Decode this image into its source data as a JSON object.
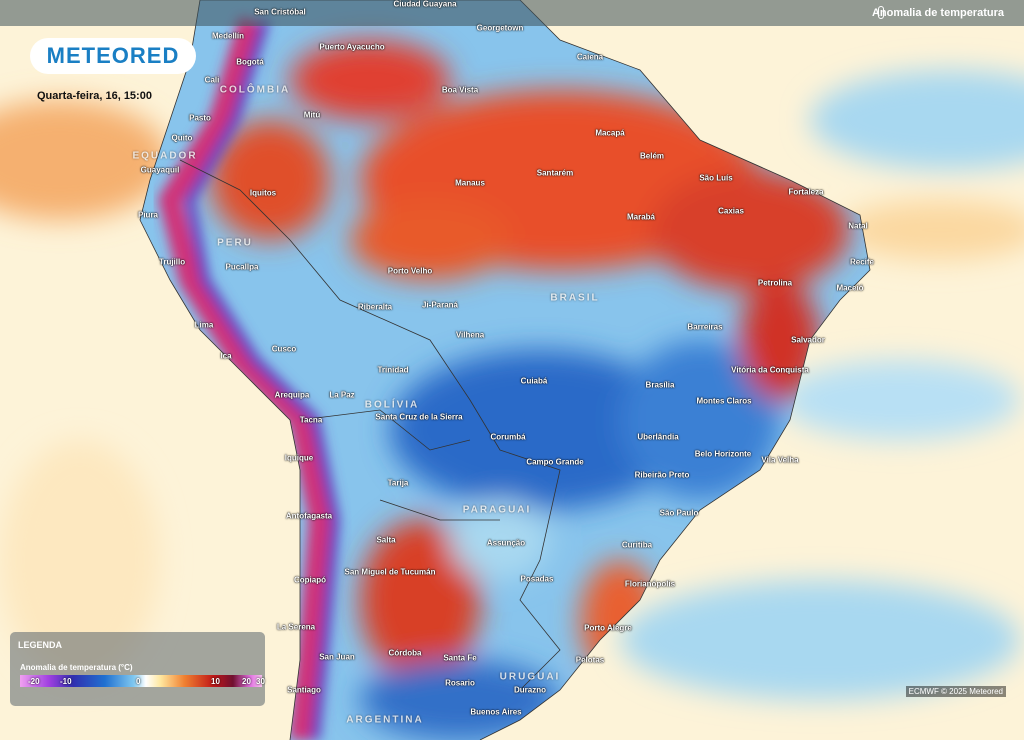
{
  "header": {
    "title": "Anomalia de temperatura"
  },
  "logo": {
    "text": "METEORED"
  },
  "date": "Quarta-feira, 16, 15:00",
  "legend": {
    "heading": "LEGENDA",
    "title": "Anomalia de temperatura (°C)",
    "ticks": [
      -20,
      -10,
      0,
      10,
      20,
      30
    ]
  },
  "credit": "ECMWF © 2025 Meteored",
  "countries": [
    "COLÔMBIA",
    "EQUADOR",
    "PERU",
    "BOLÍVIA",
    "BRASIL",
    "PARAGUAI",
    "URUGUAI",
    "ARGENTINA"
  ],
  "cities": [
    "San Cristóbal",
    "Ciudad Guayana",
    "Georgetown",
    "Medellín",
    "Bogotá",
    "Puerto Ayacucho",
    "Boa Vista",
    "Cali",
    "Caiena",
    "Pasto",
    "Quito",
    "Mitú",
    "Macapá",
    "Guayaquil",
    "Manaus",
    "Santarém",
    "Belém",
    "São Luís",
    "Fortaleza",
    "Iquitos",
    "Piura",
    "Marabá",
    "Caxias",
    "Natal",
    "Trujillo",
    "Recife",
    "Pucallpa",
    "Porto Velho",
    "Petrolina",
    "Maceió",
    "Riberalta",
    "Ji-Paraná",
    "Lima",
    "Vilhena",
    "Barreiras",
    "Salvador",
    "Ica",
    "Cusco",
    "Trinidad",
    "Cuiabá",
    "Brasília",
    "Vitória da Conquista",
    "Arequipa",
    "La Paz",
    "Montes Claros",
    "Santa Cruz de la Sierra",
    "Tacna",
    "Corumbá",
    "Uberlândia",
    "Belo Horizonte",
    "Iquique",
    "Campo Grande",
    "Ribeirão Preto",
    "Vila Velha",
    "Tarija",
    "São Paulo",
    "Antofagasta",
    "Assunção",
    "Curitiba",
    "Salta",
    "San Miguel de Tucumán",
    "Posadas",
    "Florianópolis",
    "Copiapó",
    "Porto Alegre",
    "La Serena",
    "Córdoba",
    "Santa Fe",
    "San Juan",
    "Pelotas",
    "Rosario",
    "Santiago",
    "Buenos Aires",
    "Durazno"
  ]
}
